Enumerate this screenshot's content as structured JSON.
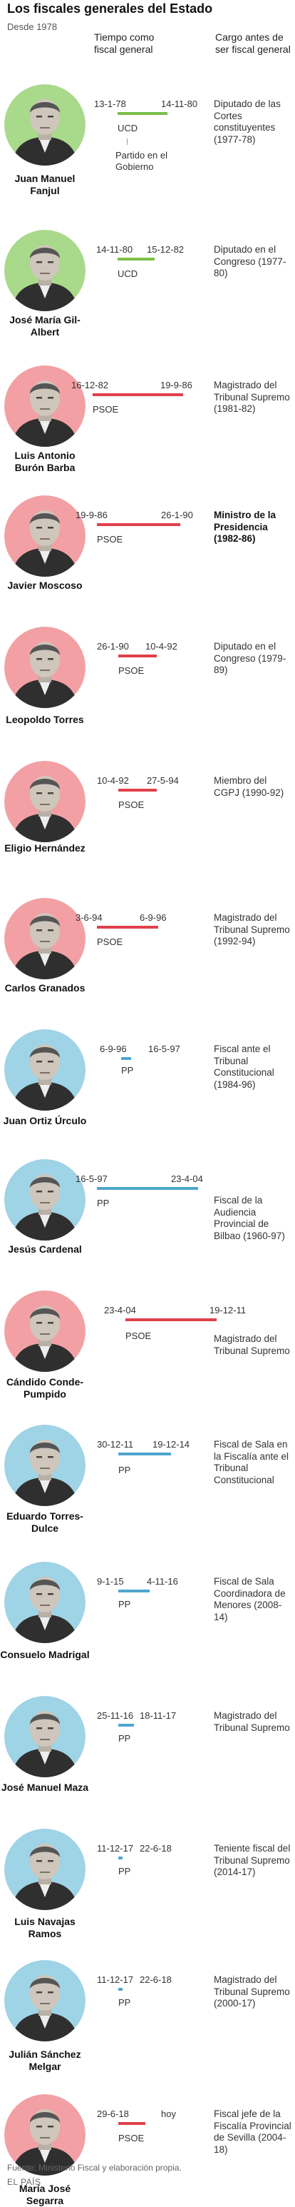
{
  "header": {
    "title": "Los fiscales generales del Estado",
    "subtitle": "Desde 1978",
    "col_tiempo": "Tiempo como fiscal general",
    "col_cargo": "Cargo antes de ser fiscal general"
  },
  "colors": {
    "green": "#a9d98a",
    "green_bar": "#7bbf4a",
    "red": "#f2a0a4",
    "red_bar": "#e0404a",
    "blue": "#9fd3e6",
    "blue_bar": "#4ea6cc"
  },
  "fiscales": [
    {
      "name": "Juan Manuel Fanjul",
      "start": "13-1-78",
      "end": "14-11-80",
      "party": "UCD",
      "cargo": "Diputado de las Cortes constituyentes (1977-78)",
      "bold": false,
      "note": "Partido en el Gobierno",
      "color": "green"
    },
    {
      "name": "José María Gil-Albert",
      "start": "14-11-80",
      "end": "15-12-82",
      "party": "UCD",
      "cargo": "Diputado en el Congreso (1977-80)",
      "bold": false,
      "color": "green"
    },
    {
      "name": "Luis Antonio Burón Barba",
      "start": "16-12-82",
      "end": "19-9-86",
      "party": "PSOE",
      "cargo": "Magistrado del Tribunal Supremo (1981-82)",
      "bold": false,
      "color": "red"
    },
    {
      "name": "Javier Moscoso",
      "start": "19-9-86",
      "end": "26-1-90",
      "party": "PSOE",
      "cargo": "Ministro de la Presidencia (1982-86)",
      "bold": true,
      "color": "red"
    },
    {
      "name": "Leopoldo Torres",
      "start": "26-1-90",
      "end": "10-4-92",
      "party": "PSOE",
      "cargo": "Diputado en el Congreso (1979-89)",
      "bold": false,
      "color": "red"
    },
    {
      "name": "Eligio Hernández",
      "start": "10-4-92",
      "end": "27-5-94",
      "party": "PSOE",
      "cargo": "Miembro del CGPJ (1990-92)",
      "bold": false,
      "color": "red"
    },
    {
      "name": "Carlos Granados",
      "start": "3-6-94",
      "end": "6-9-96",
      "party": "PSOE",
      "cargo": "Magistrado del Tribunal Supremo (1992-94)",
      "bold": false,
      "color": "red"
    },
    {
      "name": "Juan Ortiz Úrculo",
      "start": "6-9-96",
      "end": "16-5-97",
      "party": "PP",
      "cargo": "Fiscal ante el Tribunal Constitucional (1984-96)",
      "bold": false,
      "color": "blue"
    },
    {
      "name": "Jesús Cardenal",
      "start": "16-5-97",
      "end": "23-4-04",
      "party": "PP",
      "cargo": "Fiscal de la Audiencia Provincial de Bilbao (1960-97)",
      "bold": false,
      "color": "blue"
    },
    {
      "name": "Cándido Conde-Pumpido",
      "start": "23-4-04",
      "end": "19-12-11",
      "party": "PSOE",
      "cargo": "Magistrado del Tribunal Supremo",
      "bold": false,
      "color": "red"
    },
    {
      "name": "Eduardo Torres-Dulce",
      "start": "30-12-11",
      "end": "19-12-14",
      "party": "PP",
      "cargo": "Fiscal de Sala en la Fiscalía ante el Tribunal Constitucional",
      "bold": false,
      "color": "blue"
    },
    {
      "name": "Consuelo Madrigal",
      "start": "9-1-15",
      "end": "4-11-16",
      "party": "PP",
      "cargo": "Fiscal de Sala Coordinadora de Menores (2008-14)",
      "bold": false,
      "color": "blue"
    },
    {
      "name": "José Manuel Maza",
      "start": "25-11-16",
      "end": "18-11-17",
      "party": "PP",
      "cargo": "Magistrado del Tribunal Supremo",
      "bold": false,
      "color": "blue"
    },
    {
      "name": "Luis Navajas Ramos",
      "start": "11-12-17",
      "end": "22-6-18",
      "party": "PP",
      "cargo": "Teniente fiscal del Tribunal Supremo (2014-17)",
      "bold": false,
      "color": "blue"
    },
    {
      "name": "Julián Sánchez Melgar",
      "start": "11-12-17",
      "end": "22-6-18",
      "party": "PP",
      "cargo": "Magistrado del Tribunal Supremo (2000-17)",
      "bold": false,
      "color": "blue"
    },
    {
      "name": "María José Segarra",
      "start": "29-6-18",
      "end": "hoy",
      "party": "PSOE",
      "cargo": "Fiscal jefe de la Fiscalía Provincial de Sevilla (2004-18)",
      "bold": false,
      "color": "red"
    }
  ],
  "footer": {
    "source": "Fuente: Ministerio Fiscal y elaboración propia.",
    "brand": "EL PAÍS"
  }
}
